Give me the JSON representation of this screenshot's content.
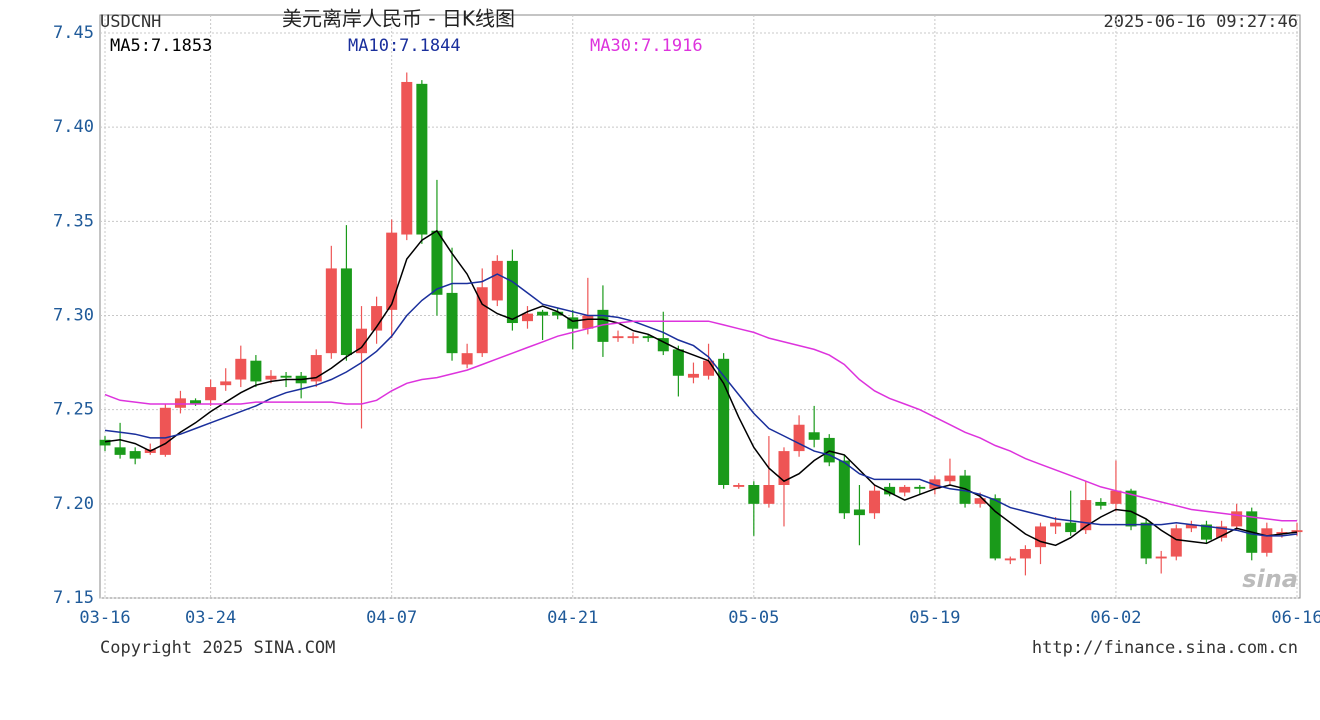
{
  "chart_data": {
    "type": "candlestick",
    "symbol": "USDCNH",
    "title": "美元离岸人民币 - 日K线图",
    "timestamp": "2025-06-16 09:27:46",
    "copyright": "Copyright 2025 SINA.COM",
    "url": "http://finance.sina.com.cn",
    "watermark": "sina",
    "up_color": "#ee5555",
    "down_color": "#1a9a1a",
    "grid": true,
    "ylim": [
      7.15,
      7.45
    ],
    "yticks": [
      7.45,
      {
        "value": 7.4,
        "label": "7.40"
      },
      7.35,
      {
        "value": 7.3,
        "label": "7.30"
      },
      7.25,
      {
        "value": 7.2,
        "label": "7.20"
      },
      7.15
    ],
    "categories": [
      "03-16",
      null,
      null,
      null,
      null,
      null,
      null,
      "03-24",
      null,
      null,
      null,
      null,
      null,
      null,
      null,
      null,
      null,
      null,
      null,
      "04-07",
      null,
      null,
      null,
      null,
      null,
      null,
      null,
      null,
      null,
      null,
      null,
      "04-21",
      null,
      null,
      null,
      null,
      null,
      null,
      null,
      null,
      null,
      null,
      null,
      "05-05",
      null,
      null,
      null,
      null,
      null,
      null,
      null,
      null,
      null,
      null,
      null,
      "05-19",
      null,
      null,
      null,
      null,
      null,
      null,
      null,
      null,
      null,
      null,
      null,
      "06-02",
      null,
      null,
      null,
      null,
      null,
      null,
      null,
      null,
      null,
      null,
      null,
      "06-16"
    ],
    "open": [
      7.234,
      7.23,
      7.228,
      7.227,
      7.226,
      7.251,
      7.255,
      7.255,
      7.263,
      7.266,
      7.276,
      7.266,
      7.268,
      7.268,
      7.265,
      7.28,
      7.325,
      7.28,
      7.292,
      7.303,
      7.343,
      7.423,
      7.345,
      7.312,
      7.274,
      7.28,
      7.308,
      7.329,
      7.297,
      7.302,
      7.302,
      7.299,
      7.293,
      7.303,
      7.288,
      7.288,
      7.289,
      7.288,
      7.282,
      7.267,
      7.268,
      7.277,
      7.209,
      7.21,
      7.2,
      7.21,
      7.228,
      7.238,
      7.235,
      7.223,
      7.197,
      7.195,
      7.209,
      7.206,
      7.209,
      7.208,
      7.212,
      7.215,
      7.2,
      7.203,
      7.17,
      7.171,
      7.177,
      7.188,
      7.19,
      7.186,
      7.201,
      7.2,
      7.207,
      7.19,
      7.171,
      7.172,
      7.187,
      7.189,
      7.182,
      7.188,
      7.196,
      7.174,
      7.184,
      7.185
    ],
    "high": [
      7.236,
      7.243,
      7.23,
      7.232,
      7.253,
      7.26,
      7.256,
      7.266,
      7.272,
      7.284,
      7.279,
      7.271,
      7.27,
      7.27,
      7.282,
      7.337,
      7.348,
      7.305,
      7.31,
      7.351,
      7.429,
      7.425,
      7.372,
      7.336,
      7.285,
      7.325,
      7.332,
      7.335,
      7.305,
      7.303,
      7.304,
      7.303,
      7.32,
      7.316,
      7.292,
      7.291,
      7.29,
      7.302,
      7.284,
      7.275,
      7.285,
      7.28,
      7.211,
      7.212,
      7.236,
      7.23,
      7.247,
      7.252,
      7.237,
      7.226,
      7.21,
      7.21,
      7.211,
      7.21,
      7.21,
      7.215,
      7.224,
      7.218,
      7.206,
      7.205,
      7.172,
      7.178,
      7.19,
      7.193,
      7.207,
      7.212,
      7.203,
      7.223,
      7.208,
      7.192,
      7.175,
      7.189,
      7.191,
      7.191,
      7.191,
      7.2,
      7.198,
      7.19,
      7.187,
      7.19
    ],
    "low": [
      7.228,
      7.224,
      7.221,
      7.226,
      7.225,
      7.248,
      7.252,
      7.252,
      7.26,
      7.262,
      7.262,
      7.264,
      7.262,
      7.256,
      7.262,
      7.277,
      7.276,
      7.24,
      7.285,
      7.288,
      7.34,
      7.338,
      7.3,
      7.276,
      7.272,
      7.278,
      7.305,
      7.292,
      7.293,
      7.287,
      7.298,
      7.282,
      7.29,
      7.278,
      7.286,
      7.285,
      7.286,
      7.279,
      7.257,
      7.264,
      7.266,
      7.208,
      7.208,
      7.183,
      7.198,
      7.188,
      7.225,
      7.23,
      7.22,
      7.192,
      7.178,
      7.192,
      7.204,
      7.204,
      7.205,
      7.205,
      7.21,
      7.198,
      7.198,
      7.17,
      7.168,
      7.162,
      7.168,
      7.184,
      7.183,
      7.184,
      7.197,
      7.196,
      7.186,
      7.168,
      7.163,
      7.17,
      7.185,
      7.179,
      7.18,
      7.186,
      7.17,
      7.172,
      7.182,
      7.183
    ],
    "close": [
      7.231,
      7.226,
      7.224,
      7.229,
      7.251,
      7.256,
      7.253,
      7.262,
      7.265,
      7.277,
      7.265,
      7.268,
      7.267,
      7.264,
      7.279,
      7.325,
      7.279,
      7.293,
      7.305,
      7.344,
      7.424,
      7.343,
      7.311,
      7.28,
      7.28,
      7.315,
      7.329,
      7.296,
      7.301,
      7.3,
      7.3,
      7.293,
      7.3,
      7.286,
      7.289,
      7.289,
      7.288,
      7.281,
      7.268,
      7.269,
      7.276,
      7.21,
      7.21,
      7.2,
      7.21,
      7.228,
      7.242,
      7.234,
      7.222,
      7.195,
      7.194,
      7.207,
      7.205,
      7.209,
      7.208,
      7.213,
      7.215,
      7.2,
      7.203,
      7.171,
      7.171,
      7.176,
      7.188,
      7.19,
      7.185,
      7.202,
      7.199,
      7.207,
      7.188,
      7.171,
      7.172,
      7.187,
      7.189,
      7.181,
      7.188,
      7.196,
      7.174,
      7.187,
      7.185,
      7.186
    ],
    "lines": [
      {
        "name": "MA5",
        "label": "MA5:7.1853",
        "last": 7.1853,
        "color": "#000000",
        "values": [
          7.233,
          7.234,
          7.232,
          7.228,
          7.232,
          7.238,
          7.243,
          7.249,
          7.254,
          7.259,
          7.263,
          7.265,
          7.266,
          7.266,
          7.267,
          7.272,
          7.278,
          7.283,
          7.294,
          7.306,
          7.33,
          7.34,
          7.345,
          7.333,
          7.322,
          7.306,
          7.301,
          7.298,
          7.302,
          7.305,
          7.302,
          7.297,
          7.298,
          7.298,
          7.296,
          7.292,
          7.29,
          7.286,
          7.282,
          7.279,
          7.276,
          7.264,
          7.246,
          7.23,
          7.219,
          7.212,
          7.216,
          7.223,
          7.228,
          7.226,
          7.218,
          7.21,
          7.206,
          7.202,
          7.205,
          7.208,
          7.21,
          7.208,
          7.204,
          7.196,
          7.19,
          7.184,
          7.18,
          7.178,
          7.182,
          7.188,
          7.193,
          7.197,
          7.196,
          7.192,
          7.186,
          7.181,
          7.18,
          7.179,
          7.183,
          7.187,
          7.185,
          7.183,
          7.184,
          7.185
        ]
      },
      {
        "name": "MA10",
        "label": "MA10:7.1844",
        "last": 7.1844,
        "color": "#1a2f9c",
        "values": [
          7.239,
          7.238,
          7.237,
          7.235,
          7.235,
          7.237,
          7.24,
          7.243,
          7.246,
          7.249,
          7.252,
          7.256,
          7.259,
          7.261,
          7.263,
          7.266,
          7.27,
          7.275,
          7.281,
          7.289,
          7.3,
          7.308,
          7.314,
          7.317,
          7.317,
          7.318,
          7.322,
          7.318,
          7.312,
          7.306,
          7.304,
          7.302,
          7.3,
          7.3,
          7.299,
          7.297,
          7.294,
          7.291,
          7.287,
          7.284,
          7.278,
          7.268,
          7.258,
          7.248,
          7.24,
          7.236,
          7.232,
          7.228,
          7.226,
          7.222,
          7.216,
          7.213,
          7.213,
          7.213,
          7.213,
          7.21,
          7.208,
          7.207,
          7.205,
          7.202,
          7.198,
          7.196,
          7.194,
          7.192,
          7.191,
          7.19,
          7.189,
          7.189,
          7.189,
          7.189,
          7.189,
          7.19,
          7.189,
          7.188,
          7.187,
          7.186,
          7.184,
          7.183,
          7.183,
          7.184
        ]
      },
      {
        "name": "MA30",
        "label": "MA30:7.1916",
        "last": 7.1916,
        "color": "#dd33dd",
        "values": [
          7.258,
          7.255,
          7.254,
          7.253,
          7.253,
          7.253,
          7.253,
          7.253,
          7.253,
          7.253,
          7.254,
          7.254,
          7.254,
          7.254,
          7.254,
          7.254,
          7.253,
          7.253,
          7.255,
          7.26,
          7.264,
          7.266,
          7.267,
          7.269,
          7.271,
          7.274,
          7.277,
          7.28,
          7.283,
          7.286,
          7.289,
          7.291,
          7.293,
          7.295,
          7.296,
          7.297,
          7.297,
          7.297,
          7.297,
          7.297,
          7.297,
          7.295,
          7.293,
          7.291,
          7.288,
          7.286,
          7.284,
          7.282,
          7.279,
          7.274,
          7.266,
          7.26,
          7.256,
          7.253,
          7.25,
          7.246,
          7.242,
          7.238,
          7.235,
          7.231,
          7.228,
          7.224,
          7.221,
          7.218,
          7.215,
          7.212,
          7.209,
          7.207,
          7.205,
          7.203,
          7.201,
          7.199,
          7.197,
          7.196,
          7.195,
          7.194,
          7.193,
          7.192,
          7.191,
          7.191
        ]
      }
    ]
  }
}
